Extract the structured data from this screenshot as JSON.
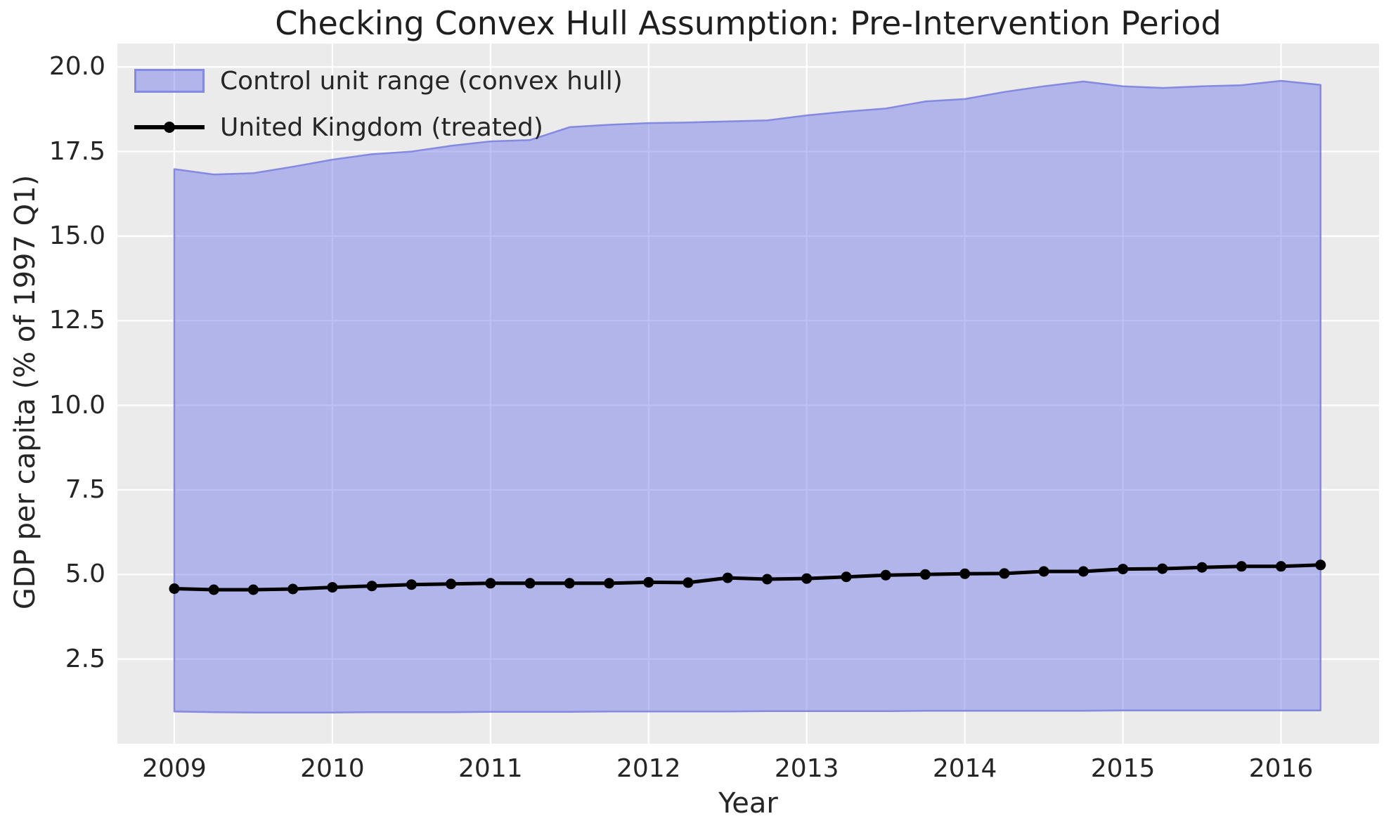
{
  "title": "Checking Convex Hull Assumption: Pre-Intervention Period",
  "legend": {
    "items": [
      {
        "label": "Control unit range (convex hull)",
        "swatch": "area"
      },
      {
        "label": "United Kingdom (treated)",
        "swatch": "line-marker"
      }
    ]
  },
  "x_axis": {
    "label": "Year",
    "ticks": [
      {
        "value": 2009,
        "label": "2009"
      },
      {
        "value": 2010,
        "label": "2010"
      },
      {
        "value": 2011,
        "label": "2011"
      },
      {
        "value": 2012,
        "label": "2012"
      },
      {
        "value": 2013,
        "label": "2013"
      },
      {
        "value": 2014,
        "label": "2014"
      },
      {
        "value": 2015,
        "label": "2015"
      },
      {
        "value": 2016,
        "label": "2016"
      }
    ]
  },
  "y_axis": {
    "label": "GDP per capita (% of 1997 Q1)",
    "ticks": [
      {
        "value": 2.5,
        "label": "2.5"
      },
      {
        "value": 5.0,
        "label": "5.0"
      },
      {
        "value": 7.5,
        "label": "7.5"
      },
      {
        "value": 10.0,
        "label": "10.0"
      },
      {
        "value": 12.5,
        "label": "12.5"
      },
      {
        "value": 15.0,
        "label": "15.0"
      },
      {
        "value": 17.5,
        "label": "17.5"
      },
      {
        "value": 20.0,
        "label": "20.0"
      }
    ]
  },
  "colors": {
    "plot_background": "#ebebeb",
    "grid": "#ffffff",
    "hull_fill": "rgba(106,115,233,0.45)",
    "hull_edge": "rgba(125,130,224,0.9)",
    "uk_line": "#000000",
    "text": "#262626"
  },
  "chart_data": {
    "type": "area",
    "title": "Checking Convex Hull Assumption: Pre-Intervention Period",
    "xlabel": "Year",
    "ylabel": "GDP per capita (% of 1997 Q1)",
    "xlim": [
      2008.64,
      2016.62
    ],
    "ylim": [
      0,
      20.69
    ],
    "grid": true,
    "legend_position": "upper left",
    "x": [
      2009.0,
      2009.25,
      2009.5,
      2009.75,
      2010.0,
      2010.25,
      2010.5,
      2010.75,
      2011.0,
      2011.25,
      2011.5,
      2011.75,
      2012.0,
      2012.25,
      2012.5,
      2012.75,
      2013.0,
      2013.25,
      2013.5,
      2013.75,
      2014.0,
      2014.25,
      2014.5,
      2014.75,
      2015.0,
      2015.25,
      2015.5,
      2015.75,
      2016.0,
      2016.25
    ],
    "series": [
      {
        "name": "Control unit range (convex hull)",
        "type": "band",
        "upper": [
          16.98,
          16.82,
          16.86,
          17.05,
          17.26,
          17.42,
          17.5,
          17.67,
          17.8,
          17.84,
          18.22,
          18.29,
          18.34,
          18.36,
          18.39,
          18.42,
          18.57,
          18.68,
          18.77,
          18.98,
          19.05,
          19.26,
          19.43,
          19.57,
          19.43,
          19.38,
          19.43,
          19.46,
          19.59,
          19.47
        ],
        "lower": [
          0.95,
          0.93,
          0.92,
          0.92,
          0.92,
          0.93,
          0.93,
          0.93,
          0.94,
          0.94,
          0.94,
          0.95,
          0.95,
          0.95,
          0.95,
          0.96,
          0.96,
          0.96,
          0.96,
          0.97,
          0.97,
          0.97,
          0.97,
          0.97,
          0.98,
          0.98,
          0.98,
          0.98,
          0.98,
          0.98
        ]
      },
      {
        "name": "United Kingdom (treated)",
        "type": "line",
        "values": [
          4.58,
          4.55,
          4.55,
          4.57,
          4.62,
          4.66,
          4.7,
          4.72,
          4.74,
          4.74,
          4.74,
          4.74,
          4.77,
          4.76,
          4.9,
          4.86,
          4.88,
          4.93,
          4.98,
          5.0,
          5.02,
          5.03,
          5.09,
          5.09,
          5.16,
          5.17,
          5.21,
          5.24,
          5.24,
          5.28
        ]
      }
    ]
  }
}
